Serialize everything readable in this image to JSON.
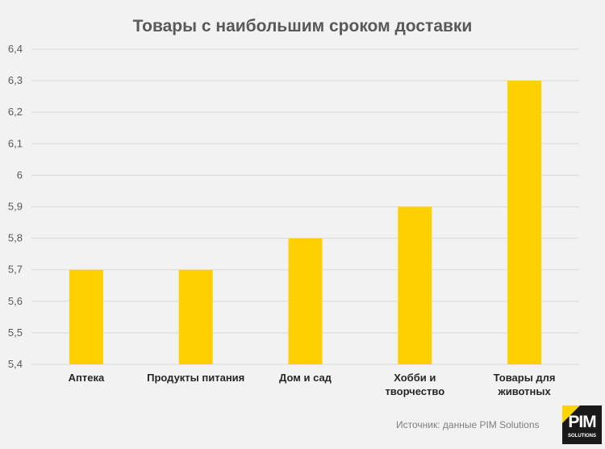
{
  "chart_data": {
    "type": "bar",
    "title": "Товары с наибольшим сроком доставки",
    "categories": [
      [
        "Аптека"
      ],
      [
        "Продукты питания"
      ],
      [
        "Дом и сад"
      ],
      [
        "Хобби и",
        "творчество"
      ],
      [
        "Товары для",
        "животных"
      ]
    ],
    "values": [
      5.7,
      5.7,
      5.8,
      5.9,
      6.3
    ],
    "ylim": [
      5.4,
      6.4
    ],
    "yticks": [
      "5,4",
      "5,5",
      "5,6",
      "5,7",
      "5,8",
      "5,9",
      "6",
      "6,1",
      "6,2",
      "6,3",
      "6,4"
    ],
    "grid": true,
    "bar_color": "#ffd000",
    "grid_color": "#d9d9d9"
  },
  "source_note": "Источник: данные PIM Solutions",
  "logo": {
    "main": "PIM",
    "sub": "SOLUTIONS"
  }
}
